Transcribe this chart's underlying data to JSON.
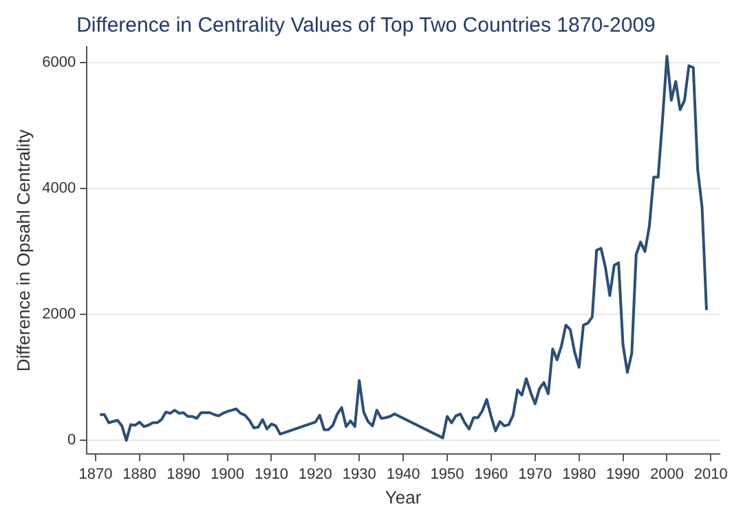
{
  "chart_data": {
    "type": "line",
    "title": "Difference in Centrality Values of Top Two Countries 1870-2009",
    "xlabel": "Year",
    "ylabel": "Difference in Opsahl Centrality",
    "x": [
      1871,
      1872,
      1873,
      1874,
      1875,
      1876,
      1877,
      1878,
      1879,
      1880,
      1881,
      1882,
      1883,
      1884,
      1885,
      1886,
      1887,
      1888,
      1889,
      1890,
      1891,
      1892,
      1893,
      1894,
      1895,
      1896,
      1897,
      1898,
      1899,
      1900,
      1901,
      1902,
      1903,
      1904,
      1905,
      1906,
      1907,
      1908,
      1909,
      1910,
      1911,
      1912,
      1920,
      1921,
      1922,
      1923,
      1924,
      1925,
      1926,
      1927,
      1928,
      1929,
      1930,
      1931,
      1932,
      1933,
      1934,
      1935,
      1936,
      1937,
      1938,
      1949,
      1950,
      1951,
      1952,
      1953,
      1954,
      1955,
      1956,
      1957,
      1958,
      1959,
      1960,
      1961,
      1962,
      1963,
      1964,
      1965,
      1966,
      1967,
      1968,
      1969,
      1970,
      1971,
      1972,
      1973,
      1974,
      1975,
      1976,
      1977,
      1978,
      1979,
      1980,
      1981,
      1982,
      1983,
      1984,
      1985,
      1986,
      1987,
      1988,
      1989,
      1990,
      1991,
      1992,
      1993,
      1994,
      1995,
      1996,
      1997,
      1998,
      1999,
      2000,
      2001,
      2002,
      2003,
      2004,
      2005,
      2006,
      2007,
      2008,
      2009
    ],
    "series": [
      {
        "color": "#2b4f75",
        "values": [
          410,
          410,
          280,
          300,
          320,
          230,
          0,
          250,
          240,
          290,
          220,
          240,
          280,
          280,
          330,
          450,
          430,
          480,
          430,
          440,
          380,
          380,
          350,
          440,
          440,
          440,
          410,
          390,
          430,
          460,
          480,
          500,
          430,
          400,
          320,
          200,
          210,
          330,
          180,
          260,
          230,
          100,
          290,
          400,
          170,
          170,
          240,
          420,
          520,
          220,
          310,
          220,
          950,
          450,
          300,
          230,
          480,
          350,
          360,
          380,
          420,
          40,
          380,
          280,
          390,
          420,
          280,
          180,
          360,
          360,
          470,
          650,
          380,
          150,
          300,
          230,
          250,
          400,
          800,
          720,
          980,
          760,
          580,
          820,
          920,
          740,
          1450,
          1280,
          1500,
          1830,
          1760,
          1400,
          1160,
          1830,
          1860,
          1960,
          3020,
          3050,
          2750,
          2300,
          2780,
          2820,
          1520,
          1080,
          1380,
          2950,
          3150,
          3000,
          3400,
          4180,
          4180,
          5100,
          6100,
          5400,
          5700,
          5250,
          5400,
          5950,
          5920,
          4300,
          3700,
          2070
        ]
      }
    ],
    "xlim": [
      1868,
      2012
    ],
    "xticks": [
      1870,
      1880,
      1890,
      1900,
      1910,
      1920,
      1930,
      1940,
      1950,
      1960,
      1970,
      1980,
      1990,
      2000,
      2010
    ],
    "ylim": [
      -220,
      6250
    ],
    "yticks": [
      0,
      2000,
      4000,
      6000
    ],
    "grid": "y",
    "marker": "none",
    "line_style": "solid"
  }
}
